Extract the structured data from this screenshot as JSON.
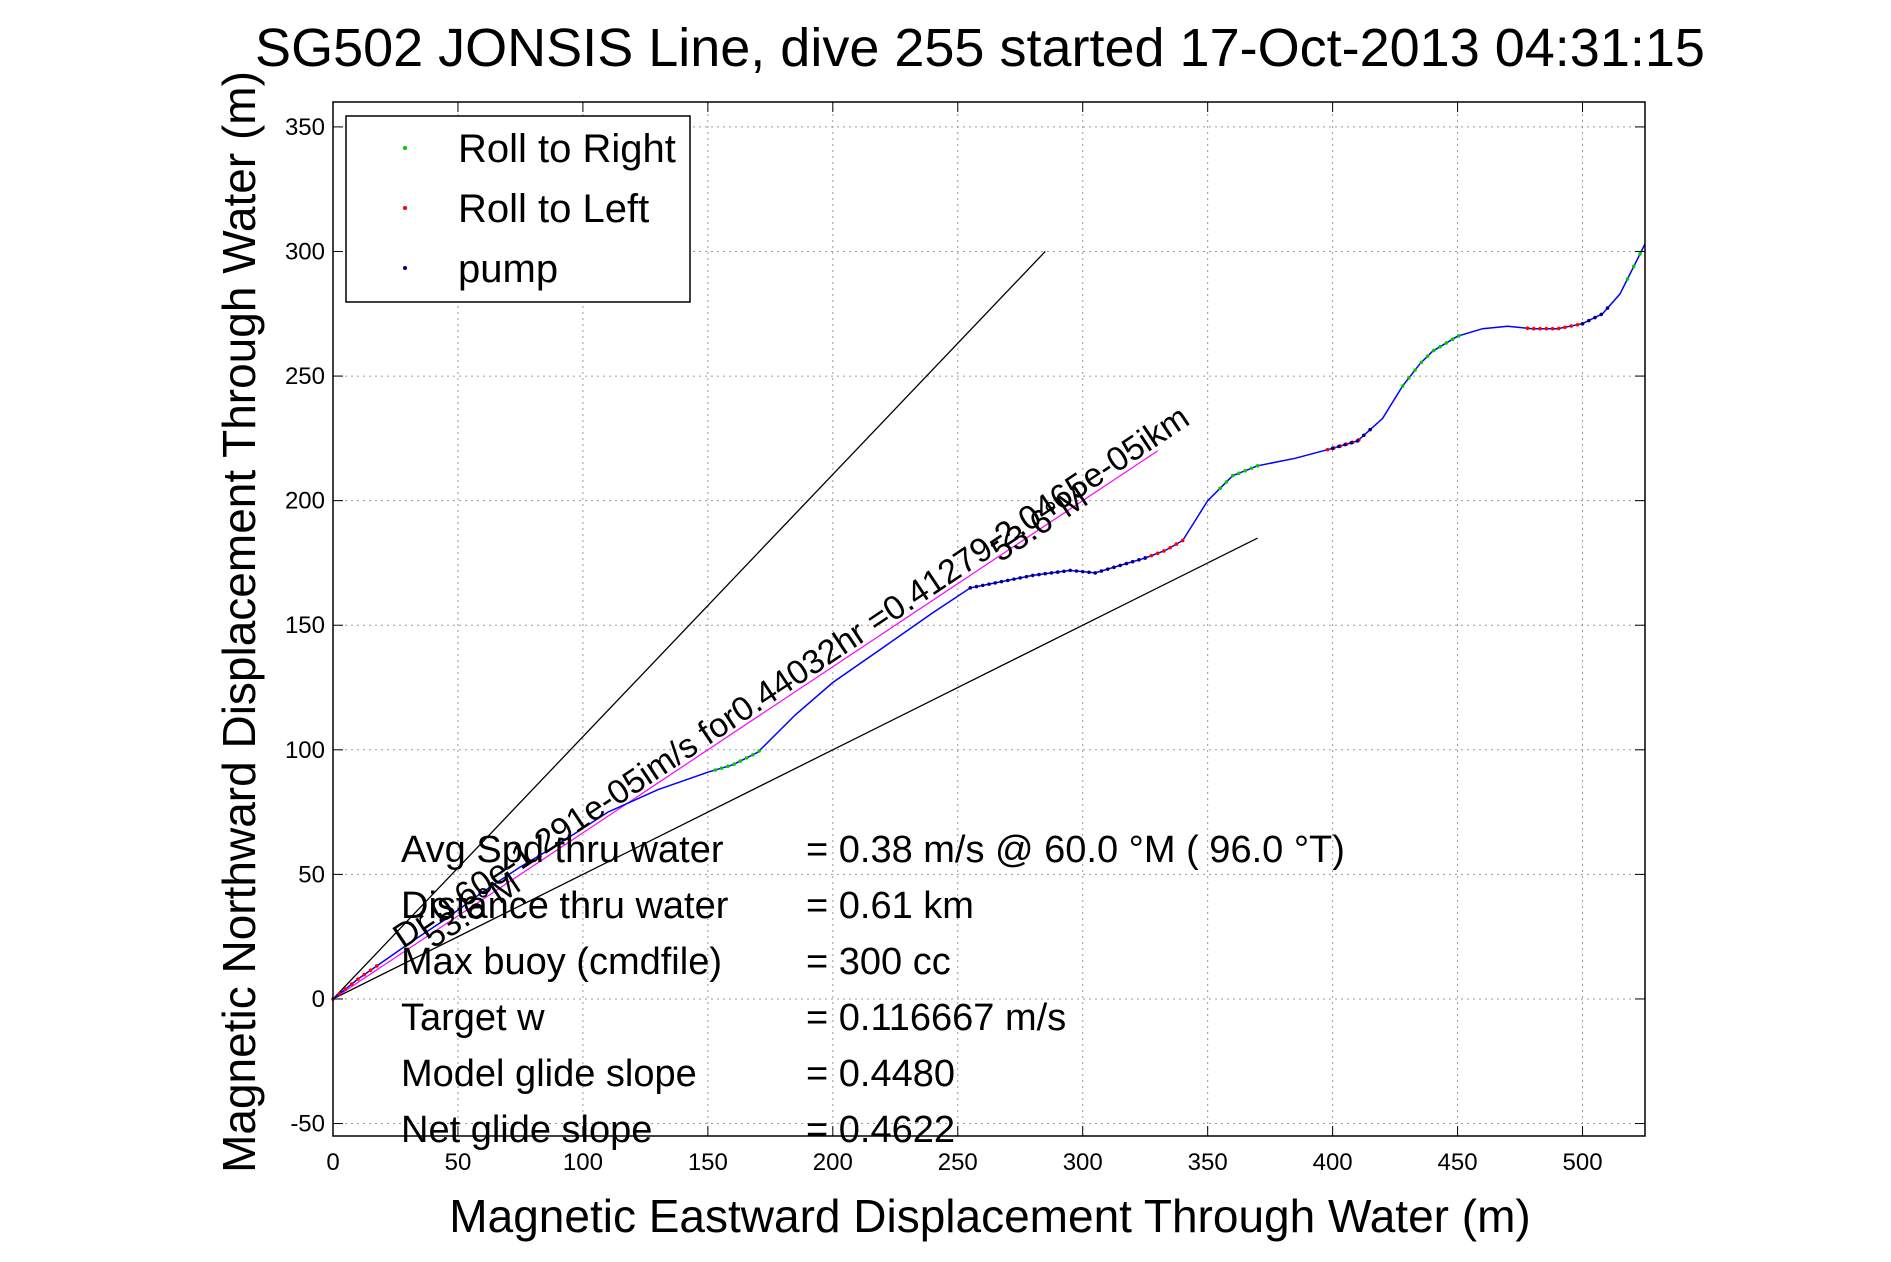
{
  "chart_data": {
    "type": "line",
    "title": "SG502 JONSIS Line, dive 255 started 17-Oct-2013 04:31:15",
    "xlabel": "Magnetic Eastward Displacement Through Water (m)",
    "ylabel": "Magnetic Northward Displacement Through Water (m)",
    "xlim": [
      0,
      525
    ],
    "ylim": [
      -55,
      360
    ],
    "xticks": [
      0,
      50,
      100,
      150,
      200,
      250,
      300,
      350,
      400,
      450,
      500
    ],
    "yticks": [
      -50,
      0,
      50,
      100,
      150,
      200,
      250,
      300,
      350
    ],
    "xtick_labels": [
      "0",
      "50",
      "100",
      "150",
      "200",
      "250",
      "300",
      "350",
      "400",
      "450",
      "500"
    ],
    "ytick_labels": [
      "-50",
      "0",
      "50",
      "100",
      "150",
      "200",
      "250",
      "300",
      "350"
    ],
    "grid": true,
    "legend_position": "top-left",
    "colors": {
      "track": "#0000ff",
      "roll_right": "#00cc00",
      "roll_left": "#ff0000",
      "pump": "#000080",
      "guide": "#000000",
      "current": "#ff00ff"
    },
    "series": [
      {
        "name": "track",
        "x": [
          0,
          5,
          10,
          20,
          30,
          45,
          60,
          75,
          90,
          110,
          130,
          150,
          160,
          170,
          185,
          200,
          220,
          240,
          255,
          265,
          280,
          295,
          305,
          315,
          325,
          333,
          340,
          345,
          350,
          360,
          370,
          385,
          400,
          410,
          420,
          428,
          435,
          440,
          450,
          460,
          470,
          480,
          490,
          500,
          508,
          515,
          525
        ],
        "y": [
          0,
          4,
          8,
          15,
          22,
          32,
          43,
          53,
          62,
          75,
          84,
          91,
          94,
          99,
          114,
          127,
          141,
          155,
          165,
          167,
          170,
          172,
          171,
          174,
          177,
          180,
          184,
          192,
          200,
          210,
          214,
          217,
          221,
          224,
          233,
          246,
          255,
          260,
          266,
          269,
          270,
          269,
          269,
          271,
          275,
          283,
          303
        ]
      }
    ],
    "legend": [
      {
        "name": "Roll to Right",
        "color": "#00cc00"
      },
      {
        "name": "Roll to Left",
        "color": "#ff0000"
      },
      {
        "name": "pump",
        "color": "#000080"
      }
    ],
    "marker_segments": [
      {
        "series": "Roll to Right",
        "color": "#00cc00",
        "x_range": [
          153,
          172
        ]
      },
      {
        "series": "Roll to Right",
        "color": "#00cc00",
        "x_range": [
          355,
          372
        ]
      },
      {
        "series": "Roll to Right",
        "color": "#00cc00",
        "x_range": [
          428,
          452
        ]
      },
      {
        "series": "Roll to Right",
        "color": "#00cc00",
        "x_range": [
          518,
          525
        ]
      },
      {
        "series": "Roll to Left",
        "color": "#ff0000",
        "x_range": [
          0,
          18
        ]
      },
      {
        "series": "Roll to Left",
        "color": "#ff0000",
        "x_range": [
          325,
          340
        ]
      },
      {
        "series": "Roll to Left",
        "color": "#ff0000",
        "x_range": [
          398,
          412
        ]
      },
      {
        "series": "Roll to Left",
        "color": "#ff0000",
        "x_range": [
          478,
          500
        ]
      },
      {
        "series": "pump",
        "color": "#000080",
        "x_range": [
          255,
          325
        ]
      },
      {
        "series": "pump",
        "color": "#000080",
        "x_range": [
          400,
          415
        ]
      },
      {
        "series": "pump",
        "color": "#000080",
        "x_range": [
          500,
          512
        ]
      }
    ],
    "guide_lines": [
      {
        "from": [
          0,
          0
        ],
        "to": [
          285,
          300
        ]
      },
      {
        "from": [
          0,
          0
        ],
        "to": [
          370,
          185
        ]
      }
    ],
    "current_line": {
      "from": [
        0,
        0
      ],
      "to": [
        330,
        220
      ]
    },
    "annotations": [
      {
        "text": "Dr 0.60e-1.291e-05im/s for0.44032hr =0.41279-2.0465e-05ikm",
        "x": 28,
        "y": 20,
        "rotation": -33.7
      },
      {
        "text": "53.6°M",
        "x": 267,
        "y": 175,
        "rotation": -33.7
      },
      {
        "text": "53.6°M",
        "x": 40,
        "y": 20,
        "rotation": -33.7
      }
    ],
    "stats": [
      {
        "label": "Avg Spd thru water",
        "value": "=  0.38 m/s @  60.0 °M ( 96.0 °T)"
      },
      {
        "label": "Distance thru water",
        "value": "=  0.61 km"
      },
      {
        "label": "Max buoy (cmdfile)",
        "value": "= 300 cc"
      },
      {
        "label": "Target w",
        "value": "= 0.116667 m/s"
      },
      {
        "label": "Model glide slope",
        "value": "= 0.4480"
      },
      {
        "label": "Net glide slope",
        "value": "= 0.4622"
      }
    ]
  }
}
